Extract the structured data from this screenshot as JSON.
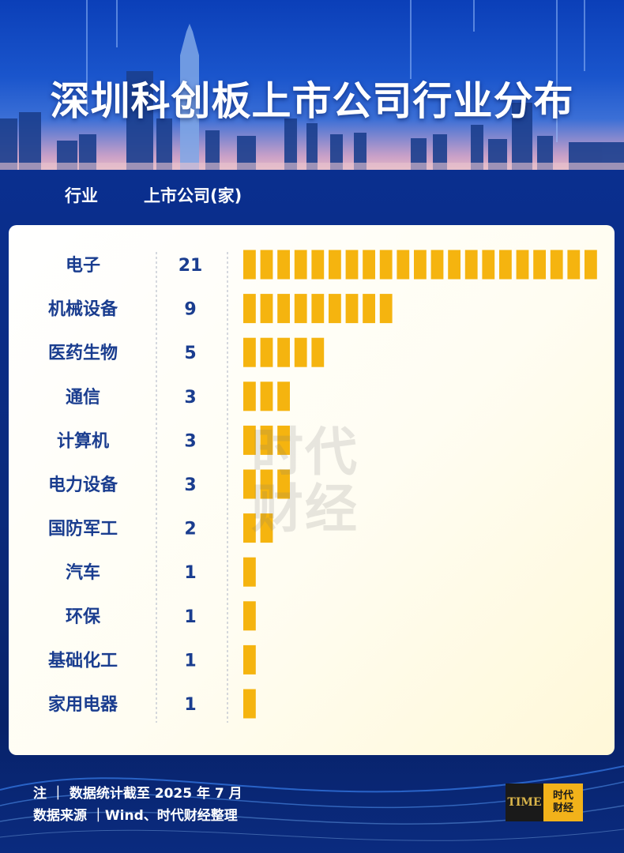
{
  "title": "深圳科创板上市公司行业分布",
  "header": {
    "industry": "行业",
    "count": "上市公司(家)"
  },
  "chart_data": {
    "type": "bar",
    "orientation": "horizontal",
    "categories": [
      "电子",
      "机械设备",
      "医药生物",
      "通信",
      "计算机",
      "电力设备",
      "国防军工",
      "汽车",
      "环保",
      "基础化工",
      "家用电器"
    ],
    "values": [
      21,
      9,
      5,
      3,
      3,
      3,
      2,
      1,
      1,
      1,
      1
    ],
    "bar_style": "segmented, one block per company",
    "bar_color": "#f5b40f"
  },
  "watermark": {
    "line1": "时代",
    "line2": "财经"
  },
  "footer": {
    "note": "注 ｜ 数据统计截至 2025 年 7 月",
    "source": "数据来源 ｜Wind、时代财经整理"
  },
  "logo": {
    "left": "TIME",
    "right_line1": "时代",
    "right_line2": "财经"
  },
  "colors": {
    "bar": "#f5b40f",
    "label": "#1a3d8f",
    "background": "#0b2a7c"
  }
}
